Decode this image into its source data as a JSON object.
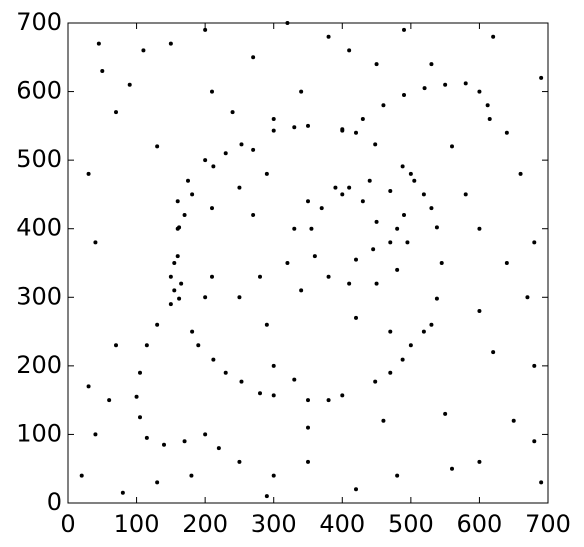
{
  "chart_data": {
    "type": "scatter",
    "color": "#000000",
    "xlim": [
      0,
      700
    ],
    "ylim": [
      0,
      700
    ],
    "xticks": [
      0,
      100,
      200,
      300,
      400,
      500,
      600,
      700
    ],
    "yticks": [
      0,
      100,
      200,
      300,
      400,
      500,
      600,
      700
    ],
    "grid": false,
    "x": [
      545,
      538,
      519,
      488,
      448,
      400,
      350,
      300,
      253,
      212,
      181,
      162,
      155,
      162,
      181,
      212,
      253,
      300,
      350,
      400,
      448,
      488,
      519,
      538,
      150,
      155,
      170,
      230,
      330,
      420,
      505,
      530,
      530,
      470,
      380,
      280,
      230,
      190,
      500,
      270,
      410,
      440,
      470,
      490,
      495,
      480,
      450,
      410,
      380,
      360,
      355,
      370,
      400,
      430,
      450,
      445,
      420,
      330,
      320,
      340,
      470,
      480,
      390,
      350,
      170,
      140,
      115,
      105,
      100,
      105,
      115,
      130,
      150,
      165,
      160,
      160,
      160,
      175,
      200,
      400,
      430,
      460,
      490,
      520,
      550,
      580,
      600,
      612,
      615,
      210,
      250,
      290,
      270,
      210,
      200,
      280,
      300,
      330,
      420,
      470,
      500,
      30,
      40,
      45,
      50,
      60,
      70,
      90,
      110,
      130,
      150,
      200,
      210,
      240,
      270,
      320,
      380,
      410,
      450,
      490,
      530,
      560,
      580,
      620,
      640,
      660,
      690,
      680,
      640,
      600,
      620,
      680,
      650,
      600,
      690,
      560,
      480,
      420,
      350,
      290,
      250,
      200,
      130,
      80,
      20,
      30,
      70,
      40,
      300,
      460,
      550,
      680,
      600,
      670,
      250,
      290,
      350,
      220,
      180,
      340,
      300
    ],
    "values": [
      350,
      402,
      450,
      491,
      523,
      543,
      550,
      543,
      523,
      491,
      450,
      402,
      350,
      298,
      250,
      209,
      177,
      157,
      150,
      157,
      177,
      209,
      250,
      298,
      330,
      310,
      420,
      510,
      548,
      540,
      470,
      430,
      260,
      190,
      150,
      160,
      190,
      230,
      480,
      515,
      460,
      470,
      455,
      420,
      380,
      340,
      320,
      320,
      330,
      360,
      400,
      430,
      450,
      440,
      410,
      370,
      355,
      400,
      350,
      310,
      380,
      400,
      460,
      440,
      90,
      85,
      95,
      125,
      155,
      190,
      230,
      260,
      290,
      320,
      360,
      400,
      440,
      470,
      500,
      545,
      560,
      580,
      595,
      605,
      610,
      612,
      600,
      580,
      560,
      430,
      460,
      480,
      420,
      330,
      300,
      330,
      200,
      180,
      270,
      250,
      230,
      480,
      380,
      670,
      630,
      150,
      570,
      610,
      660,
      520,
      670,
      690,
      600,
      570,
      650,
      700,
      680,
      660,
      640,
      690,
      640,
      520,
      450,
      680,
      540,
      480,
      620,
      380,
      350,
      280,
      220,
      200,
      120,
      60,
      30,
      50,
      40,
      20,
      60,
      10,
      60,
      100,
      30,
      15,
      40,
      170,
      230,
      100,
      40,
      120,
      130,
      90,
      400,
      300,
      300,
      260,
      110,
      80,
      40,
      600,
      560
    ]
  }
}
